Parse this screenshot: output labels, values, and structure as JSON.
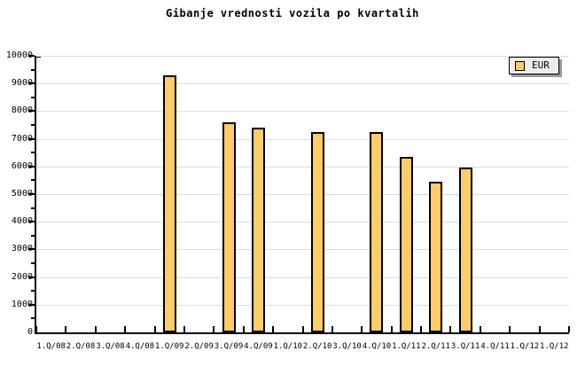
{
  "page": {
    "background": "#FFFFFF"
  },
  "chart_data": {
    "type": "bar",
    "title": "Gibanje vrednosti vozila po kvartalih",
    "categories": [
      "1.Q/08",
      "2.Q/08",
      "3.Q/08",
      "4.Q/08",
      "1.Q/09",
      "2.Q/09",
      "3.Q/09",
      "4.Q/09",
      "1.Q/10",
      "2.Q/10",
      "3.Q/10",
      "4.Q/10",
      "1.Q/11",
      "2.Q/11",
      "3.Q/11",
      "4.Q/11",
      "1.Q/12",
      "1.Q/12"
    ],
    "series": [
      {
        "name": "EUR",
        "values": [
          null,
          null,
          null,
          null,
          9300,
          null,
          7600,
          7400,
          null,
          7250,
          null,
          7250,
          6350,
          5450,
          5950,
          null,
          null,
          null
        ]
      }
    ],
    "xlabel": "",
    "ylabel": "",
    "ylim": [
      0,
      10000
    ],
    "ytick_major": 1000,
    "ytick_minor": 500,
    "grid": "horizontal-major",
    "legend": {
      "position": "top-right",
      "entries": [
        "EUR"
      ]
    },
    "colors": {
      "bar_fill": "#FFCC66",
      "bar_border": "#000000",
      "grid": "#DCDCDC",
      "axis": "#000000",
      "legend_bg": "#ECECEC",
      "legend_shadow": "#999999",
      "text": "#000000"
    }
  }
}
